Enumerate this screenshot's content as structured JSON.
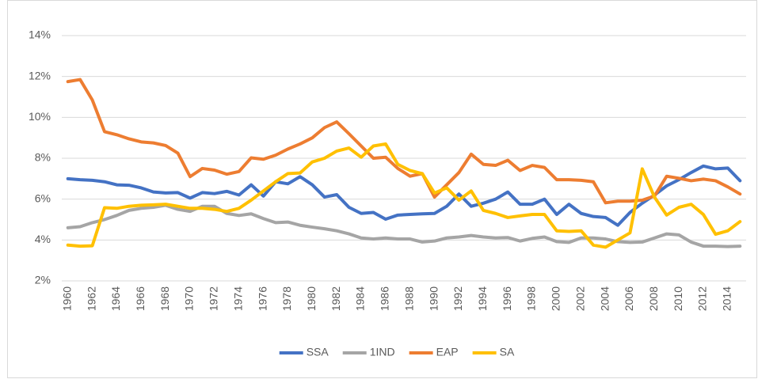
{
  "chart_data": {
    "type": "line",
    "x": [
      1960,
      1961,
      1962,
      1963,
      1964,
      1965,
      1966,
      1967,
      1968,
      1969,
      1970,
      1971,
      1972,
      1973,
      1974,
      1975,
      1976,
      1977,
      1978,
      1979,
      1980,
      1981,
      1982,
      1983,
      1984,
      1985,
      1986,
      1987,
      1988,
      1989,
      1990,
      1991,
      1992,
      1993,
      1994,
      1995,
      1996,
      1997,
      1998,
      1999,
      2000,
      2001,
      2002,
      2003,
      2004,
      2005,
      2006,
      2007,
      2008,
      2009,
      2010,
      2011,
      2012,
      2013,
      2014,
      2015
    ],
    "xlim": [
      1959.5,
      2015.5
    ],
    "xticks": [
      1960,
      1962,
      1964,
      1966,
      1968,
      1970,
      1972,
      1974,
      1976,
      1978,
      1980,
      1982,
      1984,
      1986,
      1988,
      1990,
      1992,
      1994,
      1996,
      1998,
      2000,
      2002,
      2004,
      2006,
      2008,
      2010,
      2012,
      2014
    ],
    "ylim": [
      2,
      14
    ],
    "yticks": [
      {
        "value": 2,
        "label": "2%"
      },
      {
        "value": 4,
        "label": "4%"
      },
      {
        "value": 6,
        "label": "6%"
      },
      {
        "value": 8,
        "label": "8%"
      },
      {
        "value": 10,
        "label": "10%"
      },
      {
        "value": 12,
        "label": "12%"
      },
      {
        "value": 14,
        "label": "14%"
      }
    ],
    "grid": true,
    "legend": "bottom",
    "series": [
      {
        "name": "SSA",
        "color": "#4472c4",
        "values": [
          7.0,
          6.95,
          6.92,
          6.85,
          6.7,
          6.68,
          6.55,
          6.35,
          6.3,
          6.32,
          6.05,
          6.32,
          6.27,
          6.38,
          6.2,
          6.7,
          6.15,
          6.85,
          6.75,
          7.1,
          6.7,
          6.1,
          6.22,
          5.6,
          5.3,
          5.35,
          5.02,
          5.22,
          5.25,
          5.28,
          5.3,
          5.65,
          6.25,
          5.65,
          5.8,
          6.0,
          6.35,
          5.75,
          5.75,
          6.0,
          5.25,
          5.75,
          5.3,
          5.15,
          5.1,
          4.72,
          5.35,
          5.8,
          6.2,
          6.65,
          6.95,
          7.3,
          7.62,
          7.48,
          7.52,
          6.9
        ]
      },
      {
        "name": "1IND",
        "color": "#a5a5a5",
        "values": [
          4.6,
          4.65,
          4.85,
          5.0,
          5.2,
          5.45,
          5.55,
          5.6,
          5.7,
          5.5,
          5.4,
          5.65,
          5.65,
          5.3,
          5.2,
          5.28,
          5.05,
          4.85,
          4.88,
          4.72,
          4.63,
          4.55,
          4.45,
          4.3,
          4.1,
          4.05,
          4.1,
          4.05,
          4.05,
          3.9,
          3.95,
          4.1,
          4.15,
          4.22,
          4.15,
          4.1,
          4.12,
          3.95,
          4.08,
          4.15,
          3.92,
          3.88,
          4.1,
          4.1,
          4.05,
          3.92,
          3.88,
          3.9,
          4.1,
          4.3,
          4.25,
          3.9,
          3.7,
          3.7,
          3.68,
          3.7
        ]
      },
      {
        "name": "EAP",
        "color": "#ed7d31",
        "values": [
          11.75,
          11.85,
          10.85,
          9.3,
          9.15,
          8.95,
          8.8,
          8.75,
          8.62,
          8.25,
          7.1,
          7.5,
          7.42,
          7.22,
          7.35,
          8.02,
          7.95,
          8.15,
          8.45,
          8.7,
          9.0,
          9.5,
          9.78,
          9.2,
          8.6,
          8.0,
          8.05,
          7.5,
          7.12,
          7.25,
          6.1,
          6.7,
          7.3,
          8.2,
          7.7,
          7.65,
          7.9,
          7.4,
          7.65,
          7.55,
          6.95,
          6.95,
          6.92,
          6.85,
          5.82,
          5.9,
          5.9,
          5.95,
          6.15,
          7.12,
          7.02,
          6.9,
          6.98,
          6.9,
          6.6,
          6.25
        ]
      },
      {
        "name": "SA",
        "color": "#ffc000",
        "values": [
          3.75,
          3.7,
          3.72,
          5.58,
          5.55,
          5.65,
          5.7,
          5.72,
          5.75,
          5.65,
          5.55,
          5.55,
          5.5,
          5.4,
          5.55,
          5.95,
          6.4,
          6.85,
          7.25,
          7.28,
          7.82,
          8.0,
          8.35,
          8.5,
          8.05,
          8.6,
          8.7,
          7.7,
          7.4,
          7.25,
          6.3,
          6.55,
          5.95,
          6.4,
          5.45,
          5.3,
          5.1,
          5.18,
          5.25,
          5.25,
          4.45,
          4.42,
          4.45,
          3.75,
          3.65,
          4.0,
          4.35,
          7.48,
          6.1,
          5.22,
          5.6,
          5.75,
          5.25,
          4.28,
          4.45,
          4.9
        ]
      }
    ]
  }
}
